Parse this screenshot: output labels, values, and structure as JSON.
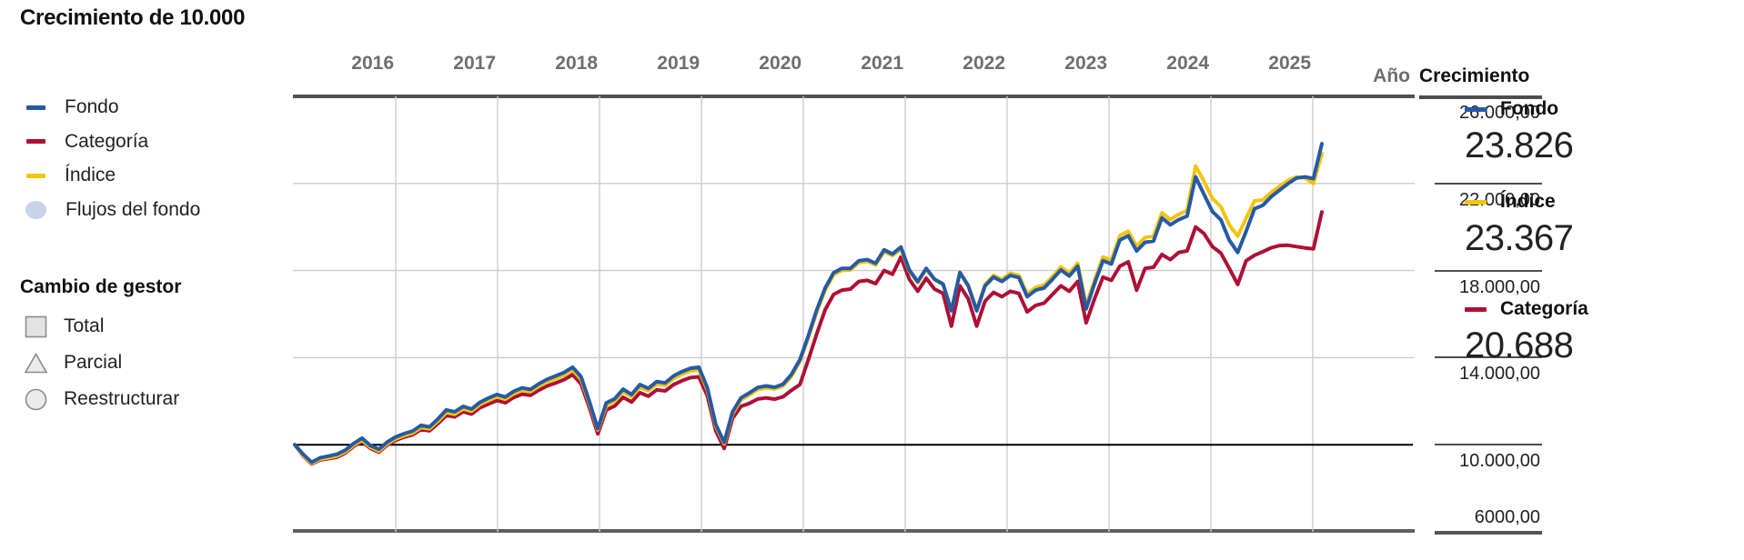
{
  "title": "Crecimiento de 10.000",
  "colors": {
    "fund_blue": "#255AA5",
    "category_red": "#AE1035",
    "index_yellow": "#F2C50C",
    "flows_dot": "#C7D4E8",
    "gridline": "#CCCCCC",
    "baseline_black": "#000000",
    "axis_dark": "#515151",
    "year_label_gray": "#6E6E6E"
  },
  "legend": {
    "items": [
      {
        "label": "Fondo",
        "swatch": "line",
        "color": "#255AA5"
      },
      {
        "label": "Categoría",
        "swatch": "line",
        "color": "#AE1035"
      },
      {
        "label": "Índice",
        "swatch": "line",
        "color": "#F2C50C"
      },
      {
        "label": "Flujos del fondo",
        "swatch": "dot",
        "color": "#C7D4E8"
      }
    ]
  },
  "manager_change": {
    "title": "Cambio de gestor",
    "items": [
      {
        "label": "Total",
        "shape": "square"
      },
      {
        "label": "Parcial",
        "shape": "triangle"
      },
      {
        "label": "Reestructurar",
        "shape": "circle"
      }
    ]
  },
  "axis": {
    "year_title": "Año",
    "growth_title": "Crecimiento",
    "y_axis_lines": [
      {
        "value": 26000,
        "label": "26.000,00",
        "style": "top"
      },
      {
        "value": 22000,
        "label": "22.000,00",
        "style": "normal"
      },
      {
        "value": 18000,
        "label": "18.000,00",
        "style": "normal"
      },
      {
        "value": 14000,
        "label": "14.000,00",
        "style": "normal"
      },
      {
        "value": 10000,
        "label": "10.000,00",
        "style": "normal"
      },
      {
        "value": 6000,
        "label": "6000,00",
        "style": "bottom",
        "label_above": true
      }
    ]
  },
  "summary": [
    {
      "label": "Fondo",
      "value": "23.826",
      "color": "#255AA5"
    },
    {
      "label": "Índice",
      "value": "23.367",
      "color": "#F2C50C"
    },
    {
      "label": "Categoría",
      "value": "20.688",
      "color": "#AE1035"
    }
  ],
  "chart_data": {
    "type": "line",
    "title": "Crecimiento de 10.000",
    "x_year_gridlines": [
      2016,
      2017,
      2018,
      2019,
      2020,
      2021,
      2022,
      2023,
      2024,
      2025
    ],
    "ylim": [
      6000,
      26000
    ],
    "ygrid_values": [
      22000,
      18000,
      14000
    ],
    "baseline_value": 10000,
    "grid": true,
    "legend_position": "left",
    "series": [
      {
        "name": "Fondo",
        "color": "#255AA5",
        "final_value": 23826,
        "values": [
          10000,
          9560,
          9200,
          9400,
          9480,
          9560,
          9750,
          10060,
          10300,
          9960,
          9790,
          10130,
          10360,
          10510,
          10630,
          10890,
          10820,
          11180,
          11600,
          11510,
          11760,
          11640,
          11950,
          12140,
          12310,
          12190,
          12450,
          12610,
          12540,
          12800,
          13010,
          13160,
          13320,
          13560,
          13130,
          11980,
          10740,
          11920,
          12110,
          12550,
          12310,
          12760,
          12590,
          12900,
          12840,
          13160,
          13360,
          13510,
          13560,
          12620,
          10940,
          10110,
          11510,
          12150,
          12380,
          12630,
          12700,
          12640,
          12780,
          13230,
          13900,
          15000,
          16200,
          17200,
          17900,
          18100,
          18100,
          18450,
          18500,
          18330,
          18950,
          18760,
          19080,
          18030,
          17490,
          18100,
          17600,
          17380,
          16150,
          17910,
          17300,
          16150,
          17300,
          17700,
          17500,
          17780,
          17680,
          16800,
          17100,
          17200,
          17600,
          18030,
          17750,
          18200,
          16240,
          17400,
          18450,
          18300,
          19400,
          19600,
          18900,
          19300,
          19350,
          20420,
          20100,
          20340,
          20500,
          22300,
          21500,
          20710,
          20330,
          19400,
          18830,
          19800,
          20840,
          21000,
          21400,
          21700,
          22000,
          22250,
          22300,
          22220,
          23826
        ]
      },
      {
        "name": "Índice",
        "color": "#F2C50C",
        "final_value": 23367,
        "values": [
          10000,
          9500,
          9150,
          9330,
          9400,
          9480,
          9670,
          9980,
          10210,
          9880,
          9710,
          10050,
          10270,
          10420,
          10540,
          10790,
          10730,
          11080,
          11480,
          11400,
          11650,
          11540,
          11850,
          12030,
          12200,
          12090,
          12340,
          12500,
          12440,
          12690,
          12890,
          13040,
          13200,
          13430,
          13010,
          11890,
          10680,
          11800,
          12000,
          12430,
          12200,
          12640,
          12480,
          12780,
          12730,
          13040,
          13240,
          13390,
          13440,
          12520,
          10860,
          10040,
          11420,
          12060,
          12290,
          12540,
          12610,
          12560,
          12700,
          13140,
          13820,
          14900,
          16100,
          17100,
          17810,
          18010,
          18020,
          18360,
          18420,
          18250,
          18870,
          18690,
          19000,
          17980,
          17450,
          18070,
          17580,
          17370,
          16160,
          17920,
          17330,
          16200,
          17370,
          17780,
          17590,
          17880,
          17780,
          16920,
          17230,
          17330,
          17730,
          18160,
          17890,
          18340,
          16400,
          17560,
          18620,
          18480,
          19600,
          19810,
          19120,
          19520,
          19580,
          20650,
          20340,
          20580,
          20760,
          22800,
          22100,
          21310,
          20930,
          20100,
          19580,
          20400,
          21200,
          21250,
          21600,
          21870,
          22150,
          22300,
          22250,
          22000,
          23367
        ]
      },
      {
        "name": "Categoría",
        "color": "#AE1035",
        "final_value": 20688,
        "values": [
          10000,
          9480,
          9120,
          9300,
          9360,
          9430,
          9620,
          9930,
          10150,
          9830,
          9660,
          9990,
          10210,
          10350,
          10460,
          10700,
          10640,
          10970,
          11350,
          11280,
          11520,
          11410,
          11700,
          11870,
          12030,
          11930,
          12170,
          12320,
          12270,
          12510,
          12700,
          12840,
          12990,
          13220,
          12800,
          11700,
          10500,
          11600,
          11780,
          12180,
          11960,
          12390,
          12230,
          12520,
          12470,
          12760,
          12940,
          13080,
          13120,
          12250,
          10650,
          9830,
          11210,
          11760,
          11900,
          12100,
          12150,
          12090,
          12200,
          12500,
          12760,
          13900,
          15100,
          16200,
          16900,
          17100,
          17150,
          17500,
          17550,
          17400,
          18000,
          17830,
          18620,
          17600,
          17050,
          17650,
          17150,
          16950,
          15450,
          17300,
          16700,
          15450,
          16600,
          17000,
          16800,
          17050,
          16950,
          16100,
          16400,
          16500,
          16900,
          17300,
          17050,
          17500,
          15600,
          16700,
          17700,
          17550,
          18200,
          18400,
          17100,
          18100,
          18150,
          18740,
          18500,
          18830,
          18900,
          20000,
          19700,
          19100,
          18800,
          18100,
          17360,
          18450,
          18700,
          18870,
          19050,
          19150,
          19160,
          19100,
          19040,
          19000,
          20688
        ]
      }
    ]
  }
}
